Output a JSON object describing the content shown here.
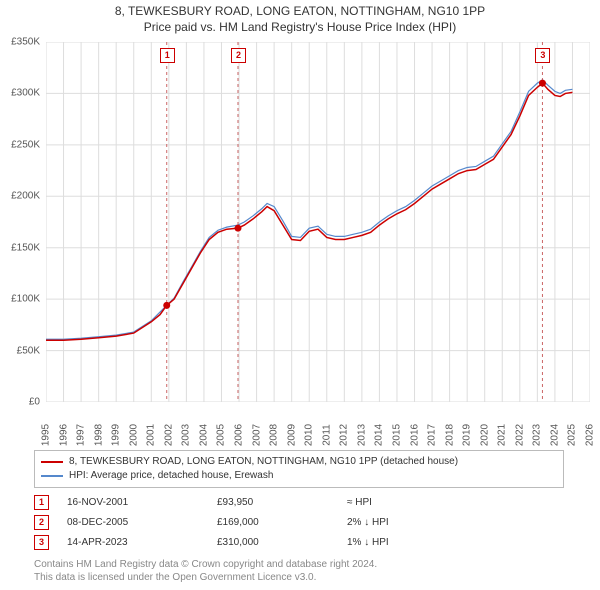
{
  "title": {
    "line1": "8, TEWKESBURY ROAD, LONG EATON, NOTTINGHAM, NG10 1PP",
    "line2": "Price paid vs. HM Land Registry's House Price Index (HPI)"
  },
  "chart": {
    "type": "line",
    "background_color": "#ffffff",
    "grid_color": "#dddddd",
    "plot_border_color": "#bbbbbb",
    "x_min": 1995,
    "x_max": 2026,
    "x_ticks": [
      1995,
      1996,
      1997,
      1998,
      1999,
      2000,
      2001,
      2002,
      2003,
      2004,
      2005,
      2006,
      2007,
      2008,
      2009,
      2010,
      2011,
      2012,
      2013,
      2014,
      2015,
      2016,
      2017,
      2018,
      2019,
      2020,
      2021,
      2022,
      2023,
      2024,
      2025,
      2026
    ],
    "x_label_fontsize": 10,
    "y_min": 0,
    "y_max": 350000,
    "y_ticks": [
      0,
      50000,
      100000,
      150000,
      200000,
      250000,
      300000,
      350000
    ],
    "y_tick_labels": [
      "£0",
      "£50K",
      "£100K",
      "£150K",
      "£200K",
      "£250K",
      "£300K",
      "£350K"
    ],
    "y_label_fontsize": 10,
    "series": [
      {
        "name": "8, TEWKESBURY ROAD, LONG EATON, NOTTINGHAM, NG10 1PP (detached house)",
        "color": "#cc0000",
        "line_width": 1.5,
        "data": [
          [
            1995,
            60000
          ],
          [
            1996,
            60000
          ],
          [
            1997,
            61000
          ],
          [
            1998,
            62500
          ],
          [
            1999,
            64000
          ],
          [
            2000,
            67000
          ],
          [
            2001,
            78000
          ],
          [
            2001.5,
            85000
          ],
          [
            2001.88,
            93950
          ],
          [
            2002.3,
            100000
          ],
          [
            2002.8,
            115000
          ],
          [
            2003.3,
            130000
          ],
          [
            2003.8,
            145000
          ],
          [
            2004.3,
            158000
          ],
          [
            2004.8,
            165000
          ],
          [
            2005.3,
            168000
          ],
          [
            2005.94,
            169000
          ],
          [
            2006.3,
            172000
          ],
          [
            2006.8,
            178000
          ],
          [
            2007.3,
            185000
          ],
          [
            2007.6,
            190000
          ],
          [
            2008.0,
            186000
          ],
          [
            2008.5,
            172000
          ],
          [
            2009.0,
            158000
          ],
          [
            2009.5,
            157000
          ],
          [
            2010.0,
            166000
          ],
          [
            2010.5,
            168000
          ],
          [
            2011.0,
            160000
          ],
          [
            2011.5,
            158000
          ],
          [
            2012.0,
            158000
          ],
          [
            2012.5,
            160000
          ],
          [
            2013.0,
            162000
          ],
          [
            2013.5,
            165000
          ],
          [
            2014.0,
            172000
          ],
          [
            2014.5,
            178000
          ],
          [
            2015.0,
            183000
          ],
          [
            2015.5,
            187000
          ],
          [
            2016.0,
            193000
          ],
          [
            2016.5,
            200000
          ],
          [
            2017.0,
            207000
          ],
          [
            2017.5,
            212000
          ],
          [
            2018.0,
            217000
          ],
          [
            2018.5,
            222000
          ],
          [
            2019.0,
            225000
          ],
          [
            2019.5,
            226000
          ],
          [
            2020.0,
            231000
          ],
          [
            2020.5,
            236000
          ],
          [
            2021.0,
            248000
          ],
          [
            2021.5,
            260000
          ],
          [
            2022.0,
            278000
          ],
          [
            2022.5,
            298000
          ],
          [
            2023.0,
            306000
          ],
          [
            2023.29,
            310000
          ],
          [
            2023.6,
            304000
          ],
          [
            2024.0,
            298000
          ],
          [
            2024.3,
            297000
          ],
          [
            2024.6,
            300000
          ],
          [
            2025.0,
            301000
          ]
        ]
      },
      {
        "name": "HPI: Average price, detached house, Erewash",
        "color": "#5588cc",
        "line_width": 1.2,
        "data": [
          [
            1995,
            61000
          ],
          [
            1996,
            61000
          ],
          [
            1997,
            62000
          ],
          [
            1998,
            63500
          ],
          [
            1999,
            65000
          ],
          [
            2000,
            68000
          ],
          [
            2001,
            79000
          ],
          [
            2001.88,
            94000
          ],
          [
            2002.3,
            101000
          ],
          [
            2002.8,
            116500
          ],
          [
            2003.3,
            131500
          ],
          [
            2003.8,
            146500
          ],
          [
            2004.3,
            160000
          ],
          [
            2004.8,
            167000
          ],
          [
            2005.3,
            170000
          ],
          [
            2005.94,
            172000
          ],
          [
            2006.3,
            175000
          ],
          [
            2006.8,
            181000
          ],
          [
            2007.3,
            188000
          ],
          [
            2007.6,
            193000
          ],
          [
            2008.0,
            190000
          ],
          [
            2008.5,
            176000
          ],
          [
            2009.0,
            161000
          ],
          [
            2009.5,
            160000
          ],
          [
            2010.0,
            169000
          ],
          [
            2010.5,
            171000
          ],
          [
            2011.0,
            163000
          ],
          [
            2011.5,
            161000
          ],
          [
            2012.0,
            161000
          ],
          [
            2012.5,
            163000
          ],
          [
            2013.0,
            165000
          ],
          [
            2013.5,
            168000
          ],
          [
            2014.0,
            175000
          ],
          [
            2014.5,
            181000
          ],
          [
            2015.0,
            186000
          ],
          [
            2015.5,
            190000
          ],
          [
            2016.0,
            196000
          ],
          [
            2016.5,
            203000
          ],
          [
            2017.0,
            210000
          ],
          [
            2017.5,
            215000
          ],
          [
            2018.0,
            220000
          ],
          [
            2018.5,
            225000
          ],
          [
            2019.0,
            228000
          ],
          [
            2019.5,
            229000
          ],
          [
            2020.0,
            234000
          ],
          [
            2020.5,
            239000
          ],
          [
            2021.0,
            251000
          ],
          [
            2021.5,
            263000
          ],
          [
            2022.0,
            282000
          ],
          [
            2022.5,
            302000
          ],
          [
            2023.0,
            310000
          ],
          [
            2023.29,
            313000
          ],
          [
            2023.6,
            308000
          ],
          [
            2024.0,
            302000
          ],
          [
            2024.3,
            300000
          ],
          [
            2024.6,
            303000
          ],
          [
            2025.0,
            304000
          ]
        ]
      }
    ],
    "markers": [
      {
        "id": "1",
        "x": 2001.88,
        "y": 93950,
        "dot_color": "#cc0000"
      },
      {
        "id": "2",
        "x": 2005.94,
        "y": 169000,
        "dot_color": "#cc0000"
      },
      {
        "id": "3",
        "x": 2023.29,
        "y": 310000,
        "dot_color": "#cc0000"
      }
    ],
    "marker_line_color": "#cc6666",
    "marker_line_dash": "3,3"
  },
  "legend": {
    "items": [
      {
        "label": "8, TEWKESBURY ROAD, LONG EATON, NOTTINGHAM, NG10 1PP (detached house)",
        "color": "#cc0000"
      },
      {
        "label": "HPI: Average price, detached house, Erewash",
        "color": "#5588cc"
      }
    ]
  },
  "table": {
    "rows": [
      {
        "id": "1",
        "date": "16-NOV-2001",
        "price": "£93,950",
        "hpi": "≈ HPI"
      },
      {
        "id": "2",
        "date": "08-DEC-2005",
        "price": "£169,000",
        "hpi": "2% ↓ HPI"
      },
      {
        "id": "3",
        "date": "14-APR-2023",
        "price": "£310,000",
        "hpi": "1% ↓ HPI"
      }
    ]
  },
  "footer": {
    "line1": "Contains HM Land Registry data © Crown copyright and database right 2024.",
    "line2": "This data is licensed under the Open Government Licence v3.0."
  }
}
